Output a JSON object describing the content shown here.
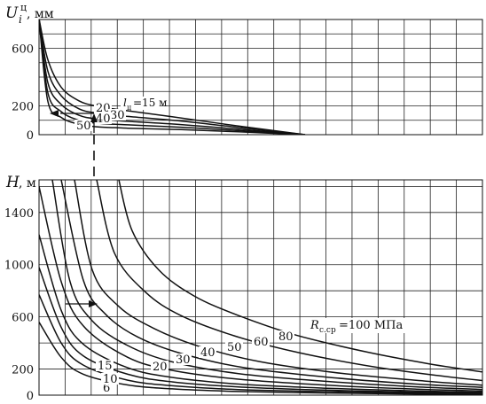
{
  "chart_data": [
    {
      "type": "line",
      "title": "",
      "ylabel_main": "U",
      "ylabel_sub": "i",
      "ylabel_sup": "ц",
      "ylabel_unit": ", мм",
      "ylim": [
        0,
        800
      ],
      "yticks": [
        0,
        200,
        600
      ],
      "legend_label": "l",
      "legend_label_sub": "ц",
      "legend_suffix": "=15 м",
      "series": [
        {
          "name": "15",
          "values": [
            [
              0.0,
              805
            ],
            [
              0.02,
              520
            ],
            [
              0.05,
              330
            ],
            [
              0.09,
              235
            ],
            [
              0.13,
              198
            ],
            [
              0.19,
              170
            ],
            [
              0.3,
              125
            ],
            [
              0.45,
              60
            ],
            [
              0.6,
              0
            ]
          ]
        },
        {
          "name": "20",
          "values": [
            [
              0.0,
              805
            ],
            [
              0.02,
              440
            ],
            [
              0.05,
              270
            ],
            [
              0.09,
              180
            ],
            [
              0.13,
              150
            ],
            [
              0.2,
              127
            ],
            [
              0.32,
              95
            ],
            [
              0.45,
              50
            ],
            [
              0.6,
              0
            ]
          ]
        },
        {
          "name": "30",
          "values": [
            [
              0.0,
              805
            ],
            [
              0.02,
              360
            ],
            [
              0.05,
              210
            ],
            [
              0.09,
              135
            ],
            [
              0.13,
              110
            ],
            [
              0.2,
              93
            ],
            [
              0.32,
              70
            ],
            [
              0.45,
              38
            ],
            [
              0.6,
              0
            ]
          ]
        },
        {
          "name": "40",
          "values": [
            [
              0.0,
              805
            ],
            [
              0.02,
              290
            ],
            [
              0.05,
              160
            ],
            [
              0.09,
              100
            ],
            [
              0.13,
              80
            ],
            [
              0.2,
              68
            ],
            [
              0.32,
              52
            ],
            [
              0.45,
              28
            ],
            [
              0.6,
              0
            ]
          ]
        },
        {
          "name": "50",
          "values": [
            [
              0.0,
              805
            ],
            [
              0.02,
              230
            ],
            [
              0.05,
              120
            ],
            [
              0.09,
              72
            ],
            [
              0.13,
              55
            ],
            [
              0.2,
              45
            ],
            [
              0.32,
              35
            ],
            [
              0.45,
              20
            ],
            [
              0.6,
              0
            ]
          ]
        }
      ],
      "curve_labels": [
        {
          "text": "20",
          "series": "20"
        },
        {
          "text": "30",
          "series": "30"
        },
        {
          "text": "40",
          "series": "40"
        },
        {
          "text": "50",
          "series": "50"
        }
      ]
    },
    {
      "type": "line",
      "title": "",
      "ylabel_main": "H",
      "ylabel_unit": ", м",
      "ylim": [
        0,
        1650
      ],
      "yticks": [
        0,
        200,
        600,
        1000,
        1400
      ],
      "legend_label": "R",
      "legend_label_sub": "с.ср",
      "legend_suffix": "=100 МПа",
      "series": [
        {
          "name": "6",
          "values": [
            [
              0.0,
              560
            ],
            [
              0.05,
              290
            ],
            [
              0.1,
              160
            ],
            [
              0.2,
              78
            ],
            [
              0.3,
              48
            ],
            [
              0.45,
              28
            ],
            [
              0.65,
              16
            ],
            [
              0.85,
              9
            ],
            [
              1.0,
              5
            ]
          ]
        },
        {
          "name": "10",
          "values": [
            [
              0.0,
              770
            ],
            [
              0.05,
              400
            ],
            [
              0.1,
              230
            ],
            [
              0.2,
              115
            ],
            [
              0.3,
              72
            ],
            [
              0.45,
              43
            ],
            [
              0.65,
              27
            ],
            [
              0.85,
              16
            ],
            [
              1.0,
              11
            ]
          ]
        },
        {
          "name": "15",
          "values": [
            [
              0.0,
              980
            ],
            [
              0.05,
              520
            ],
            [
              0.1,
              300
            ],
            [
              0.2,
              160
            ],
            [
              0.3,
              102
            ],
            [
              0.45,
              63
            ],
            [
              0.65,
              38
            ],
            [
              0.85,
              23
            ],
            [
              1.0,
              16
            ]
          ]
        },
        {
          "name": "20",
          "values": [
            [
              0.0,
              1230
            ],
            [
              0.05,
              650
            ],
            [
              0.1,
              390
            ],
            [
              0.2,
              210
            ],
            [
              0.3,
              136
            ],
            [
              0.45,
              85
            ],
            [
              0.65,
              53
            ],
            [
              0.85,
              32
            ],
            [
              1.0,
              22
            ]
          ]
        },
        {
          "name": "30",
          "values": [
            [
              0.0,
              1600
            ],
            [
              0.05,
              870
            ],
            [
              0.1,
              530
            ],
            [
              0.2,
              290
            ],
            [
              0.3,
              190
            ],
            [
              0.45,
              122
            ],
            [
              0.65,
              76
            ],
            [
              0.85,
              46
            ],
            [
              1.0,
              32
            ]
          ]
        },
        {
          "name": "40",
          "values": [
            [
              0.03,
              1650
            ],
            [
              0.07,
              870
            ],
            [
              0.12,
              570
            ],
            [
              0.2,
              380
            ],
            [
              0.3,
              255
            ],
            [
              0.45,
              165
            ],
            [
              0.65,
              105
            ],
            [
              0.85,
              64
            ],
            [
              1.0,
              44
            ]
          ]
        },
        {
          "name": "50",
          "values": [
            [
              0.05,
              1650
            ],
            [
              0.1,
              880
            ],
            [
              0.15,
              620
            ],
            [
              0.22,
              450
            ],
            [
              0.32,
              320
            ],
            [
              0.46,
              212
            ],
            [
              0.65,
              138
            ],
            [
              0.85,
              85
            ],
            [
              1.0,
              60
            ]
          ]
        },
        {
          "name": "60",
          "values": [
            [
              0.08,
              1650
            ],
            [
              0.12,
              960
            ],
            [
              0.18,
              680
            ],
            [
              0.26,
              510
            ],
            [
              0.36,
              375
            ],
            [
              0.5,
              255
            ],
            [
              0.68,
              168
            ],
            [
              0.87,
              108
            ],
            [
              1.0,
              76
            ]
          ]
        },
        {
          "name": "80",
          "values": [
            [
              0.13,
              1650
            ],
            [
              0.17,
              1090
            ],
            [
              0.24,
              790
            ],
            [
              0.32,
              610
            ],
            [
              0.44,
              455
            ],
            [
              0.58,
              330
            ],
            [
              0.75,
              220
            ],
            [
              0.9,
              150
            ],
            [
              1.0,
              112
            ]
          ]
        },
        {
          "name": "100",
          "values": [
            [
              0.18,
              1650
            ],
            [
              0.21,
              1260
            ],
            [
              0.27,
              960
            ],
            [
              0.35,
              760
            ],
            [
              0.45,
              610
            ],
            [
              0.58,
              460
            ],
            [
              0.74,
              330
            ],
            [
              0.88,
              240
            ],
            [
              1.0,
              178
            ]
          ]
        }
      ],
      "curve_labels": [
        {
          "text": "6",
          "series": "6"
        },
        {
          "text": "10",
          "series": "10"
        },
        {
          "text": "15",
          "series": "15"
        },
        {
          "text": "20",
          "series": "20"
        },
        {
          "text": "30",
          "series": "30"
        },
        {
          "text": "40",
          "series": "40"
        },
        {
          "text": "50",
          "series": "50"
        },
        {
          "text": "60",
          "series": "60"
        },
        {
          "text": "80",
          "series": "80"
        }
      ]
    }
  ]
}
